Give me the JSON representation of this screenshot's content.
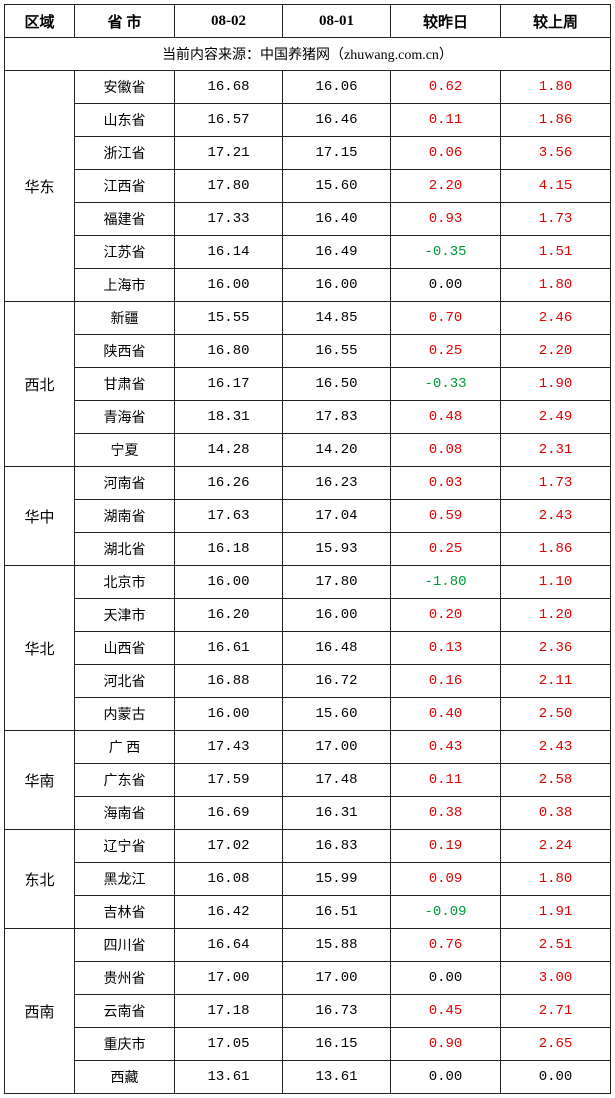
{
  "headers": {
    "region": "区域",
    "province": "省 市",
    "date1": "08-02",
    "date2": "08-01",
    "diff_day": "较昨日",
    "diff_week": "较上周"
  },
  "source_text": "当前内容来源：中国养猪网（zhuwang.com.cn）",
  "colors": {
    "positive": "#e60000",
    "negative": "#009933",
    "zero": "#000000",
    "border": "#222222",
    "text": "#000000"
  },
  "regions": [
    {
      "name": "华东",
      "rows": [
        {
          "province": "安徽省",
          "v1": "16.68",
          "v2": "16.06",
          "d1": "0.62",
          "d2": "1.80"
        },
        {
          "province": "山东省",
          "v1": "16.57",
          "v2": "16.46",
          "d1": "0.11",
          "d2": "1.86"
        },
        {
          "province": "浙江省",
          "v1": "17.21",
          "v2": "17.15",
          "d1": "0.06",
          "d2": "3.56"
        },
        {
          "province": "江西省",
          "v1": "17.80",
          "v2": "15.60",
          "d1": "2.20",
          "d2": "4.15"
        },
        {
          "province": "福建省",
          "v1": "17.33",
          "v2": "16.40",
          "d1": "0.93",
          "d2": "1.73"
        },
        {
          "province": "江苏省",
          "v1": "16.14",
          "v2": "16.49",
          "d1": "-0.35",
          "d2": "1.51"
        },
        {
          "province": "上海市",
          "v1": "16.00",
          "v2": "16.00",
          "d1": "0.00",
          "d2": "1.80"
        }
      ]
    },
    {
      "name": "西北",
      "rows": [
        {
          "province": "新疆",
          "v1": "15.55",
          "v2": "14.85",
          "d1": "0.70",
          "d2": "2.46"
        },
        {
          "province": "陕西省",
          "v1": "16.80",
          "v2": "16.55",
          "d1": "0.25",
          "d2": "2.20"
        },
        {
          "province": "甘肃省",
          "v1": "16.17",
          "v2": "16.50",
          "d1": "-0.33",
          "d2": "1.90"
        },
        {
          "province": "青海省",
          "v1": "18.31",
          "v2": "17.83",
          "d1": "0.48",
          "d2": "2.49"
        },
        {
          "province": "宁夏",
          "v1": "14.28",
          "v2": "14.20",
          "d1": "0.08",
          "d2": "2.31"
        }
      ]
    },
    {
      "name": "华中",
      "rows": [
        {
          "province": "河南省",
          "v1": "16.26",
          "v2": "16.23",
          "d1": "0.03",
          "d2": "1.73"
        },
        {
          "province": "湖南省",
          "v1": "17.63",
          "v2": "17.04",
          "d1": "0.59",
          "d2": "2.43"
        },
        {
          "province": "湖北省",
          "v1": "16.18",
          "v2": "15.93",
          "d1": "0.25",
          "d2": "1.86"
        }
      ]
    },
    {
      "name": "华北",
      "rows": [
        {
          "province": "北京市",
          "v1": "16.00",
          "v2": "17.80",
          "d1": "-1.80",
          "d2": "1.10"
        },
        {
          "province": "天津市",
          "v1": "16.20",
          "v2": "16.00",
          "d1": "0.20",
          "d2": "1.20"
        },
        {
          "province": "山西省",
          "v1": "16.61",
          "v2": "16.48",
          "d1": "0.13",
          "d2": "2.36"
        },
        {
          "province": "河北省",
          "v1": "16.88",
          "v2": "16.72",
          "d1": "0.16",
          "d2": "2.11"
        },
        {
          "province": "内蒙古",
          "v1": "16.00",
          "v2": "15.60",
          "d1": "0.40",
          "d2": "2.50"
        }
      ]
    },
    {
      "name": "华南",
      "rows": [
        {
          "province": "广 西",
          "v1": "17.43",
          "v2": "17.00",
          "d1": "0.43",
          "d2": "2.43"
        },
        {
          "province": "广东省",
          "v1": "17.59",
          "v2": "17.48",
          "d1": "0.11",
          "d2": "2.58"
        },
        {
          "province": "海南省",
          "v1": "16.69",
          "v2": "16.31",
          "d1": "0.38",
          "d2": "0.38"
        }
      ]
    },
    {
      "name": "东北",
      "rows": [
        {
          "province": "辽宁省",
          "v1": "17.02",
          "v2": "16.83",
          "d1": "0.19",
          "d2": "2.24"
        },
        {
          "province": "黑龙江",
          "v1": "16.08",
          "v2": "15.99",
          "d1": "0.09",
          "d2": "1.80"
        },
        {
          "province": "吉林省",
          "v1": "16.42",
          "v2": "16.51",
          "d1": "-0.09",
          "d2": "1.91"
        }
      ]
    },
    {
      "name": "西南",
      "rows": [
        {
          "province": "四川省",
          "v1": "16.64",
          "v2": "15.88",
          "d1": "0.76",
          "d2": "2.51"
        },
        {
          "province": "贵州省",
          "v1": "17.00",
          "v2": "17.00",
          "d1": "0.00",
          "d2": "3.00"
        },
        {
          "province": "云南省",
          "v1": "17.18",
          "v2": "16.73",
          "d1": "0.45",
          "d2": "2.71"
        },
        {
          "province": "重庆市",
          "v1": "17.05",
          "v2": "16.15",
          "d1": "0.90",
          "d2": "2.65"
        },
        {
          "province": "西藏",
          "v1": "13.61",
          "v2": "13.61",
          "d1": "0.00",
          "d2": "0.00"
        }
      ]
    }
  ]
}
